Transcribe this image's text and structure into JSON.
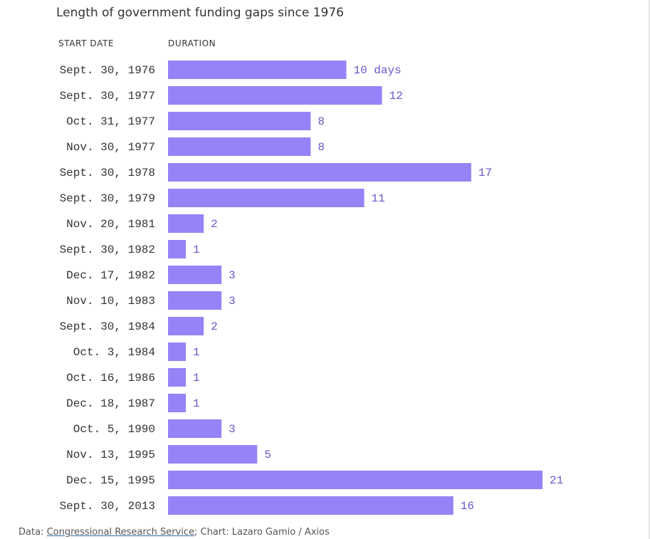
{
  "title": "Length of government funding gaps since 1976",
  "columns": {
    "date_header": "START DATE",
    "duration_header": "DURATION"
  },
  "colors": {
    "bar": "#9583f7",
    "value_text": "#6a56c8"
  },
  "footer": {
    "prefix": "Data: ",
    "source_link": "Congressional Research Service",
    "suffix": "; Chart: Lazaro Gamio / Axios"
  },
  "chart_data": {
    "type": "bar",
    "orientation": "horizontal",
    "title": "Length of government funding gaps since 1976",
    "xlabel": "DURATION",
    "ylabel": "START DATE",
    "unit": "days",
    "xlim": [
      0,
      21
    ],
    "grid": false,
    "categories": [
      "Sept. 30, 1976",
      "Sept. 30, 1977",
      "Oct. 31, 1977",
      "Nov. 30, 1977",
      "Sept. 30, 1978",
      "Sept. 30, 1979",
      "Nov. 20, 1981",
      "Sept. 30, 1982",
      "Dec. 17, 1982",
      "Nov. 10, 1983",
      "Sept. 30, 1984",
      "Oct. 3, 1984",
      "Oct. 16, 1986",
      "Dec. 18, 1987",
      "Oct. 5, 1990",
      "Nov. 13, 1995",
      "Dec. 15, 1995",
      "Sept. 30, 2013"
    ],
    "values": [
      10,
      12,
      8,
      8,
      17,
      11,
      2,
      1,
      3,
      3,
      2,
      1,
      1,
      1,
      3,
      5,
      21,
      16
    ],
    "value_labels": [
      "10 days",
      "12",
      "8",
      "8",
      "17",
      "11",
      "2",
      "1",
      "3",
      "3",
      "2",
      "1",
      "1",
      "1",
      "3",
      "5",
      "21",
      "16"
    ]
  }
}
